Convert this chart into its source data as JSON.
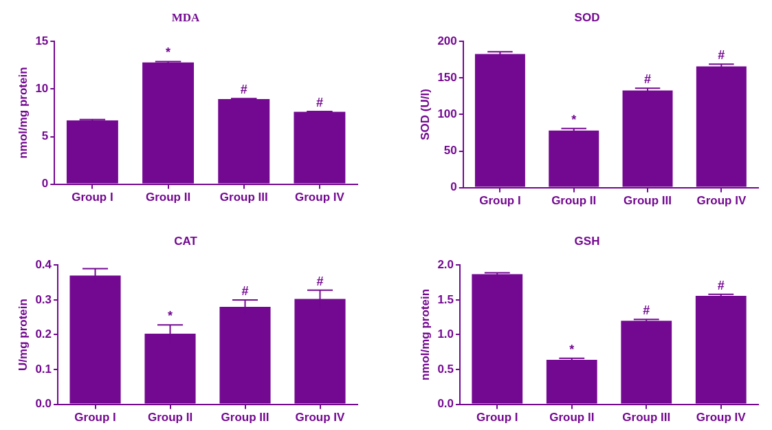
{
  "chart_data": [
    {
      "type": "bar",
      "title": "MDA",
      "ylabel": "nmol/mg protein",
      "categories": [
        "Group I",
        "Group II",
        "Group III",
        "Group IV"
      ],
      "color": "#730891",
      "values": [
        6.7,
        12.8,
        8.95,
        7.6
      ],
      "errors": [
        0.1,
        0.1,
        0.05,
        0.05
      ],
      "ylim": [
        0,
        15
      ],
      "yticks": [
        0,
        5,
        10,
        15
      ],
      "annotations": [
        {
          "text": "*",
          "x": "Group II",
          "y": 12.9
        },
        {
          "text": "#",
          "x": "Group III",
          "y": 9.0
        },
        {
          "text": "#",
          "x": "Group IV",
          "y": 7.65
        }
      ]
    },
    {
      "type": "bar",
      "title": "SOD",
      "ylabel": "SOD (U/l)",
      "categories": [
        "Group I",
        "Group II",
        "Group III",
        "Group IV"
      ],
      "color": "#730891",
      "values": [
        183,
        78,
        133,
        166
      ],
      "errors": [
        3,
        3,
        3,
        3
      ],
      "ylim": [
        0,
        200
      ],
      "yticks": [
        0,
        50,
        100,
        150,
        200
      ],
      "annotations": [
        {
          "text": "*",
          "x": "Group II",
          "y": 81
        },
        {
          "text": "#",
          "x": "Group III",
          "y": 136
        },
        {
          "text": "#",
          "x": "Group IV",
          "y": 169
        }
      ]
    },
    {
      "type": "bar",
      "title": "CAT",
      "ylabel": "U/mg protein",
      "categories": [
        "Group I",
        "Group II",
        "Group III",
        "Group IV"
      ],
      "color": "#730891",
      "values": [
        0.37,
        0.203,
        0.28,
        0.303
      ],
      "errors": [
        0.02,
        0.025,
        0.02,
        0.025
      ],
      "ylim": [
        0,
        0.4
      ],
      "yticks": [
        {
          "value": 0,
          "label": "0.0"
        },
        0.1,
        0.2,
        0.3,
        0.4
      ],
      "annotations": [
        {
          "text": "*",
          "x": "Group II",
          "y": 0.228
        },
        {
          "text": "#",
          "x": "Group III",
          "y": 0.3
        },
        {
          "text": "#",
          "x": "Group IV",
          "y": 0.328
        }
      ]
    },
    {
      "type": "bar",
      "title": "GSH",
      "ylabel": "nmol/mg protein",
      "categories": [
        "Group I",
        "Group II",
        "Group III",
        "Group IV"
      ],
      "color": "#730891",
      "values": [
        1.87,
        0.64,
        1.2,
        1.56
      ],
      "errors": [
        0.02,
        0.02,
        0.02,
        0.02
      ],
      "ylim": [
        0,
        2
      ],
      "yticks": [
        {
          "value": 0,
          "label": "0.0"
        },
        0.5,
        {
          "value": 1,
          "label": "1.0"
        },
        1.5,
        {
          "value": 2,
          "label": "2.0"
        }
      ],
      "annotations": [
        {
          "text": "*",
          "x": "Group II",
          "y": 0.66
        },
        {
          "text": "#",
          "x": "Group III",
          "y": 1.22
        },
        {
          "text": "#",
          "x": "Group IV",
          "y": 1.58
        }
      ]
    }
  ]
}
